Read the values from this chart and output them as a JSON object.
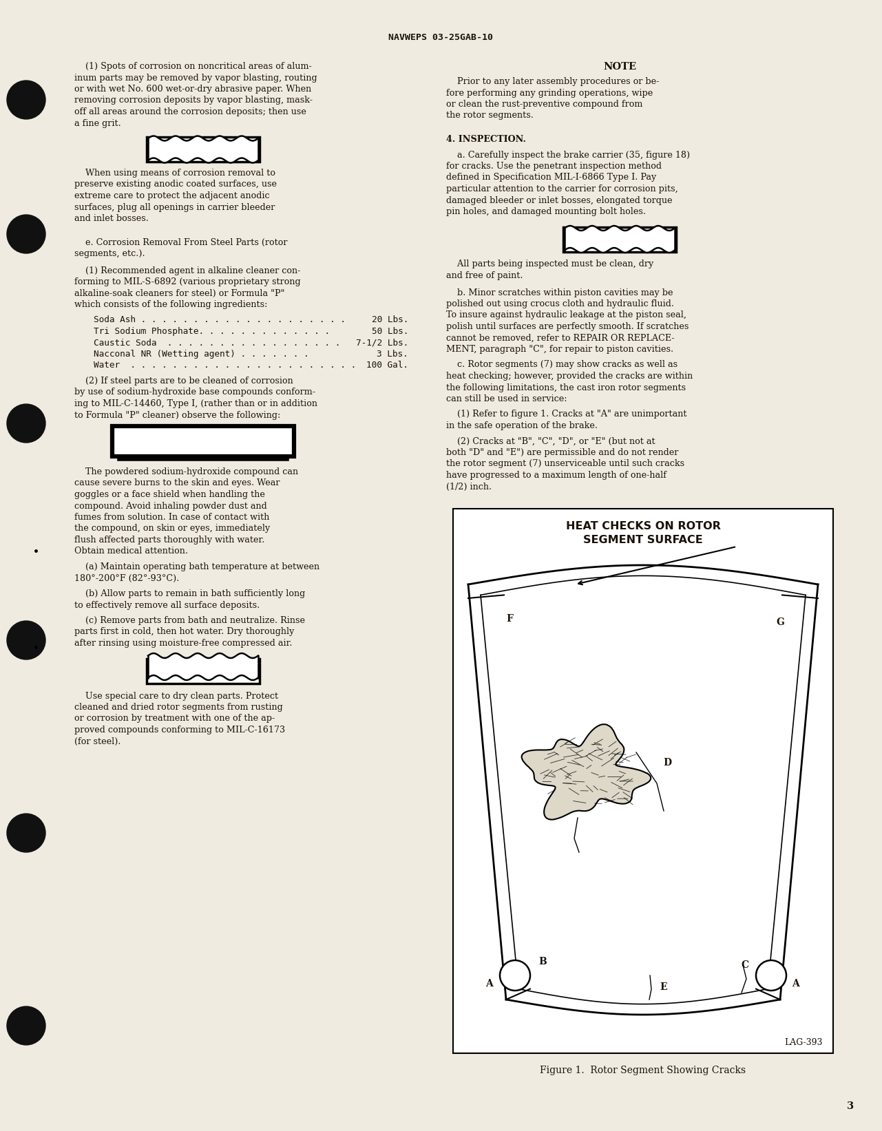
{
  "bg_color": "#f0ebe0",
  "text_color": "#1a1208",
  "header_text": "NAVWEPS 03-25GAB-10",
  "page_number": "3",
  "fig_caption": "Figure 1.  Rotor Segment Showing Cracks",
  "fig_label": "LAG-393",
  "fig_title_line1": "HEAT CHECKS ON ROTOR",
  "fig_title_line2": "SEGMENT SURFACE"
}
